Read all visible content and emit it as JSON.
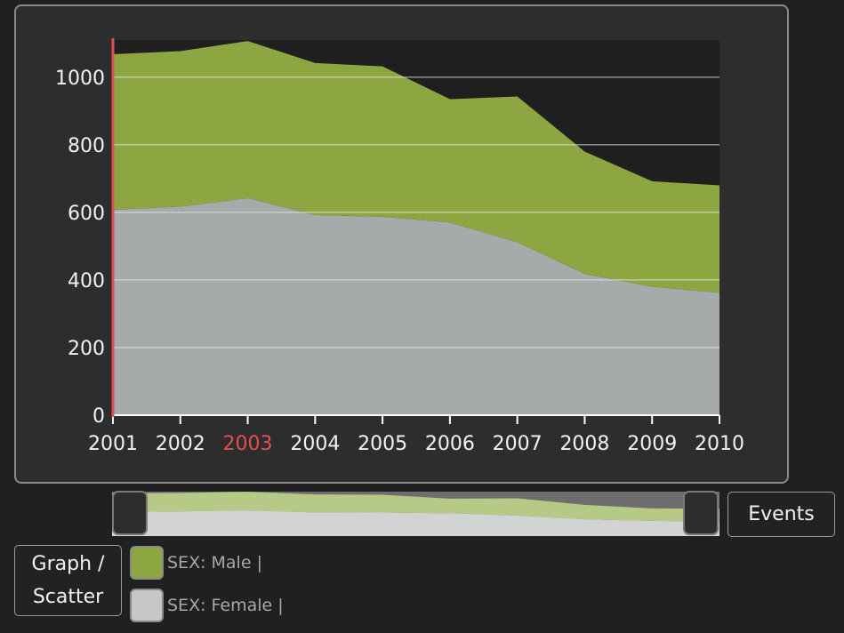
{
  "chart_data": {
    "type": "area",
    "stacked": true,
    "x": [
      "2001",
      "2002",
      "2003",
      "2004",
      "2005",
      "2006",
      "2007",
      "2008",
      "2009",
      "2010"
    ],
    "highlighted_x": "2003",
    "series": [
      {
        "name": "SEX: Female",
        "color": "#a6aaab",
        "values": [
          608,
          617,
          642,
          592,
          587,
          570,
          512,
          418,
          380,
          362
        ]
      },
      {
        "name": "SEX: Male",
        "color": "#8da641",
        "values": [
          460,
          460,
          465,
          450,
          445,
          365,
          431,
          362,
          312,
          318
        ]
      }
    ],
    "ylim": [
      0,
      1110
    ],
    "yticks": [
      0,
      200,
      400,
      600,
      800,
      1000
    ],
    "grid": true,
    "highlight_color": "#e05050"
  },
  "legend": [
    {
      "label": "SEX: Male |",
      "color": "#8da641"
    },
    {
      "label": "SEX: Female |",
      "color": "#c6c8c8"
    }
  ],
  "buttons": {
    "events": "Events",
    "graph_line1": "Graph /",
    "graph_line2": "Scatter"
  }
}
